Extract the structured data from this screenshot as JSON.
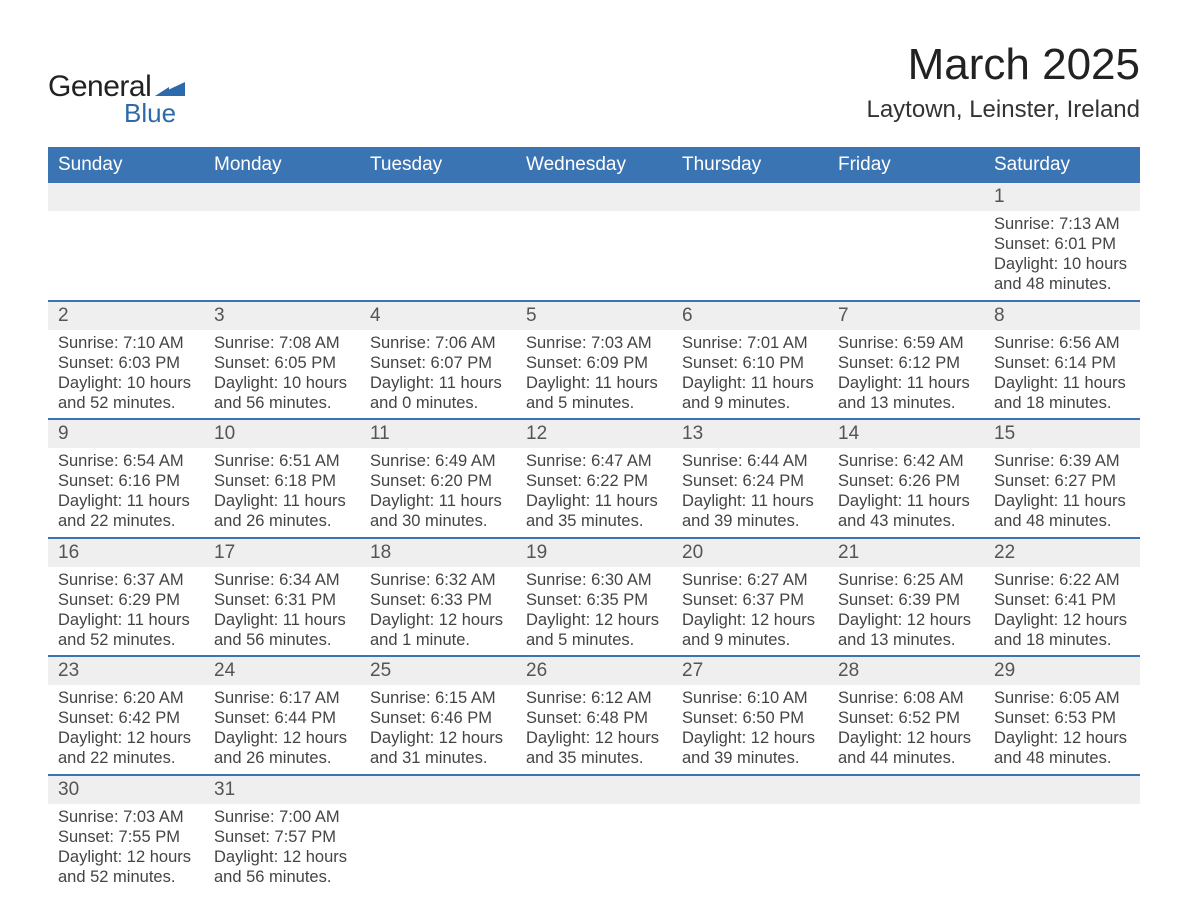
{
  "brand": {
    "line1": "General",
    "line2": "Blue",
    "accent_color": "#2d6aab"
  },
  "title": "March 2025",
  "location": "Laytown, Leinster, Ireland",
  "colors": {
    "header_bg": "#3b74b3",
    "header_text": "#ffffff",
    "daynum_bg": "#efefef",
    "text": "#444444",
    "week_divider": "#3b74b3"
  },
  "typography": {
    "title_fontsize": 44,
    "location_fontsize": 24,
    "dow_fontsize": 19,
    "body_fontsize": 16.5
  },
  "days_of_week": [
    "Sunday",
    "Monday",
    "Tuesday",
    "Wednesday",
    "Thursday",
    "Friday",
    "Saturday"
  ],
  "weeks": [
    [
      {
        "n": "",
        "lines": []
      },
      {
        "n": "",
        "lines": []
      },
      {
        "n": "",
        "lines": []
      },
      {
        "n": "",
        "lines": []
      },
      {
        "n": "",
        "lines": []
      },
      {
        "n": "",
        "lines": []
      },
      {
        "n": "1",
        "lines": [
          "Sunrise: 7:13 AM",
          "Sunset: 6:01 PM",
          "Daylight: 10 hours and 48 minutes."
        ]
      }
    ],
    [
      {
        "n": "2",
        "lines": [
          "Sunrise: 7:10 AM",
          "Sunset: 6:03 PM",
          "Daylight: 10 hours and 52 minutes."
        ]
      },
      {
        "n": "3",
        "lines": [
          "Sunrise: 7:08 AM",
          "Sunset: 6:05 PM",
          "Daylight: 10 hours and 56 minutes."
        ]
      },
      {
        "n": "4",
        "lines": [
          "Sunrise: 7:06 AM",
          "Sunset: 6:07 PM",
          "Daylight: 11 hours and 0 minutes."
        ]
      },
      {
        "n": "5",
        "lines": [
          "Sunrise: 7:03 AM",
          "Sunset: 6:09 PM",
          "Daylight: 11 hours and 5 minutes."
        ]
      },
      {
        "n": "6",
        "lines": [
          "Sunrise: 7:01 AM",
          "Sunset: 6:10 PM",
          "Daylight: 11 hours and 9 minutes."
        ]
      },
      {
        "n": "7",
        "lines": [
          "Sunrise: 6:59 AM",
          "Sunset: 6:12 PM",
          "Daylight: 11 hours and 13 minutes."
        ]
      },
      {
        "n": "8",
        "lines": [
          "Sunrise: 6:56 AM",
          "Sunset: 6:14 PM",
          "Daylight: 11 hours and 18 minutes."
        ]
      }
    ],
    [
      {
        "n": "9",
        "lines": [
          "Sunrise: 6:54 AM",
          "Sunset: 6:16 PM",
          "Daylight: 11 hours and 22 minutes."
        ]
      },
      {
        "n": "10",
        "lines": [
          "Sunrise: 6:51 AM",
          "Sunset: 6:18 PM",
          "Daylight: 11 hours and 26 minutes."
        ]
      },
      {
        "n": "11",
        "lines": [
          "Sunrise: 6:49 AM",
          "Sunset: 6:20 PM",
          "Daylight: 11 hours and 30 minutes."
        ]
      },
      {
        "n": "12",
        "lines": [
          "Sunrise: 6:47 AM",
          "Sunset: 6:22 PM",
          "Daylight: 11 hours and 35 minutes."
        ]
      },
      {
        "n": "13",
        "lines": [
          "Sunrise: 6:44 AM",
          "Sunset: 6:24 PM",
          "Daylight: 11 hours and 39 minutes."
        ]
      },
      {
        "n": "14",
        "lines": [
          "Sunrise: 6:42 AM",
          "Sunset: 6:26 PM",
          "Daylight: 11 hours and 43 minutes."
        ]
      },
      {
        "n": "15",
        "lines": [
          "Sunrise: 6:39 AM",
          "Sunset: 6:27 PM",
          "Daylight: 11 hours and 48 minutes."
        ]
      }
    ],
    [
      {
        "n": "16",
        "lines": [
          "Sunrise: 6:37 AM",
          "Sunset: 6:29 PM",
          "Daylight: 11 hours and 52 minutes."
        ]
      },
      {
        "n": "17",
        "lines": [
          "Sunrise: 6:34 AM",
          "Sunset: 6:31 PM",
          "Daylight: 11 hours and 56 minutes."
        ]
      },
      {
        "n": "18",
        "lines": [
          "Sunrise: 6:32 AM",
          "Sunset: 6:33 PM",
          "Daylight: 12 hours and 1 minute."
        ]
      },
      {
        "n": "19",
        "lines": [
          "Sunrise: 6:30 AM",
          "Sunset: 6:35 PM",
          "Daylight: 12 hours and 5 minutes."
        ]
      },
      {
        "n": "20",
        "lines": [
          "Sunrise: 6:27 AM",
          "Sunset: 6:37 PM",
          "Daylight: 12 hours and 9 minutes."
        ]
      },
      {
        "n": "21",
        "lines": [
          "Sunrise: 6:25 AM",
          "Sunset: 6:39 PM",
          "Daylight: 12 hours and 13 minutes."
        ]
      },
      {
        "n": "22",
        "lines": [
          "Sunrise: 6:22 AM",
          "Sunset: 6:41 PM",
          "Daylight: 12 hours and 18 minutes."
        ]
      }
    ],
    [
      {
        "n": "23",
        "lines": [
          "Sunrise: 6:20 AM",
          "Sunset: 6:42 PM",
          "Daylight: 12 hours and 22 minutes."
        ]
      },
      {
        "n": "24",
        "lines": [
          "Sunrise: 6:17 AM",
          "Sunset: 6:44 PM",
          "Daylight: 12 hours and 26 minutes."
        ]
      },
      {
        "n": "25",
        "lines": [
          "Sunrise: 6:15 AM",
          "Sunset: 6:46 PM",
          "Daylight: 12 hours and 31 minutes."
        ]
      },
      {
        "n": "26",
        "lines": [
          "Sunrise: 6:12 AM",
          "Sunset: 6:48 PM",
          "Daylight: 12 hours and 35 minutes."
        ]
      },
      {
        "n": "27",
        "lines": [
          "Sunrise: 6:10 AM",
          "Sunset: 6:50 PM",
          "Daylight: 12 hours and 39 minutes."
        ]
      },
      {
        "n": "28",
        "lines": [
          "Sunrise: 6:08 AM",
          "Sunset: 6:52 PM",
          "Daylight: 12 hours and 44 minutes."
        ]
      },
      {
        "n": "29",
        "lines": [
          "Sunrise: 6:05 AM",
          "Sunset: 6:53 PM",
          "Daylight: 12 hours and 48 minutes."
        ]
      }
    ],
    [
      {
        "n": "30",
        "lines": [
          "Sunrise: 7:03 AM",
          "Sunset: 7:55 PM",
          "Daylight: 12 hours and 52 minutes."
        ]
      },
      {
        "n": "31",
        "lines": [
          "Sunrise: 7:00 AM",
          "Sunset: 7:57 PM",
          "Daylight: 12 hours and 56 minutes."
        ]
      },
      {
        "n": "",
        "lines": []
      },
      {
        "n": "",
        "lines": []
      },
      {
        "n": "",
        "lines": []
      },
      {
        "n": "",
        "lines": []
      },
      {
        "n": "",
        "lines": []
      }
    ]
  ]
}
